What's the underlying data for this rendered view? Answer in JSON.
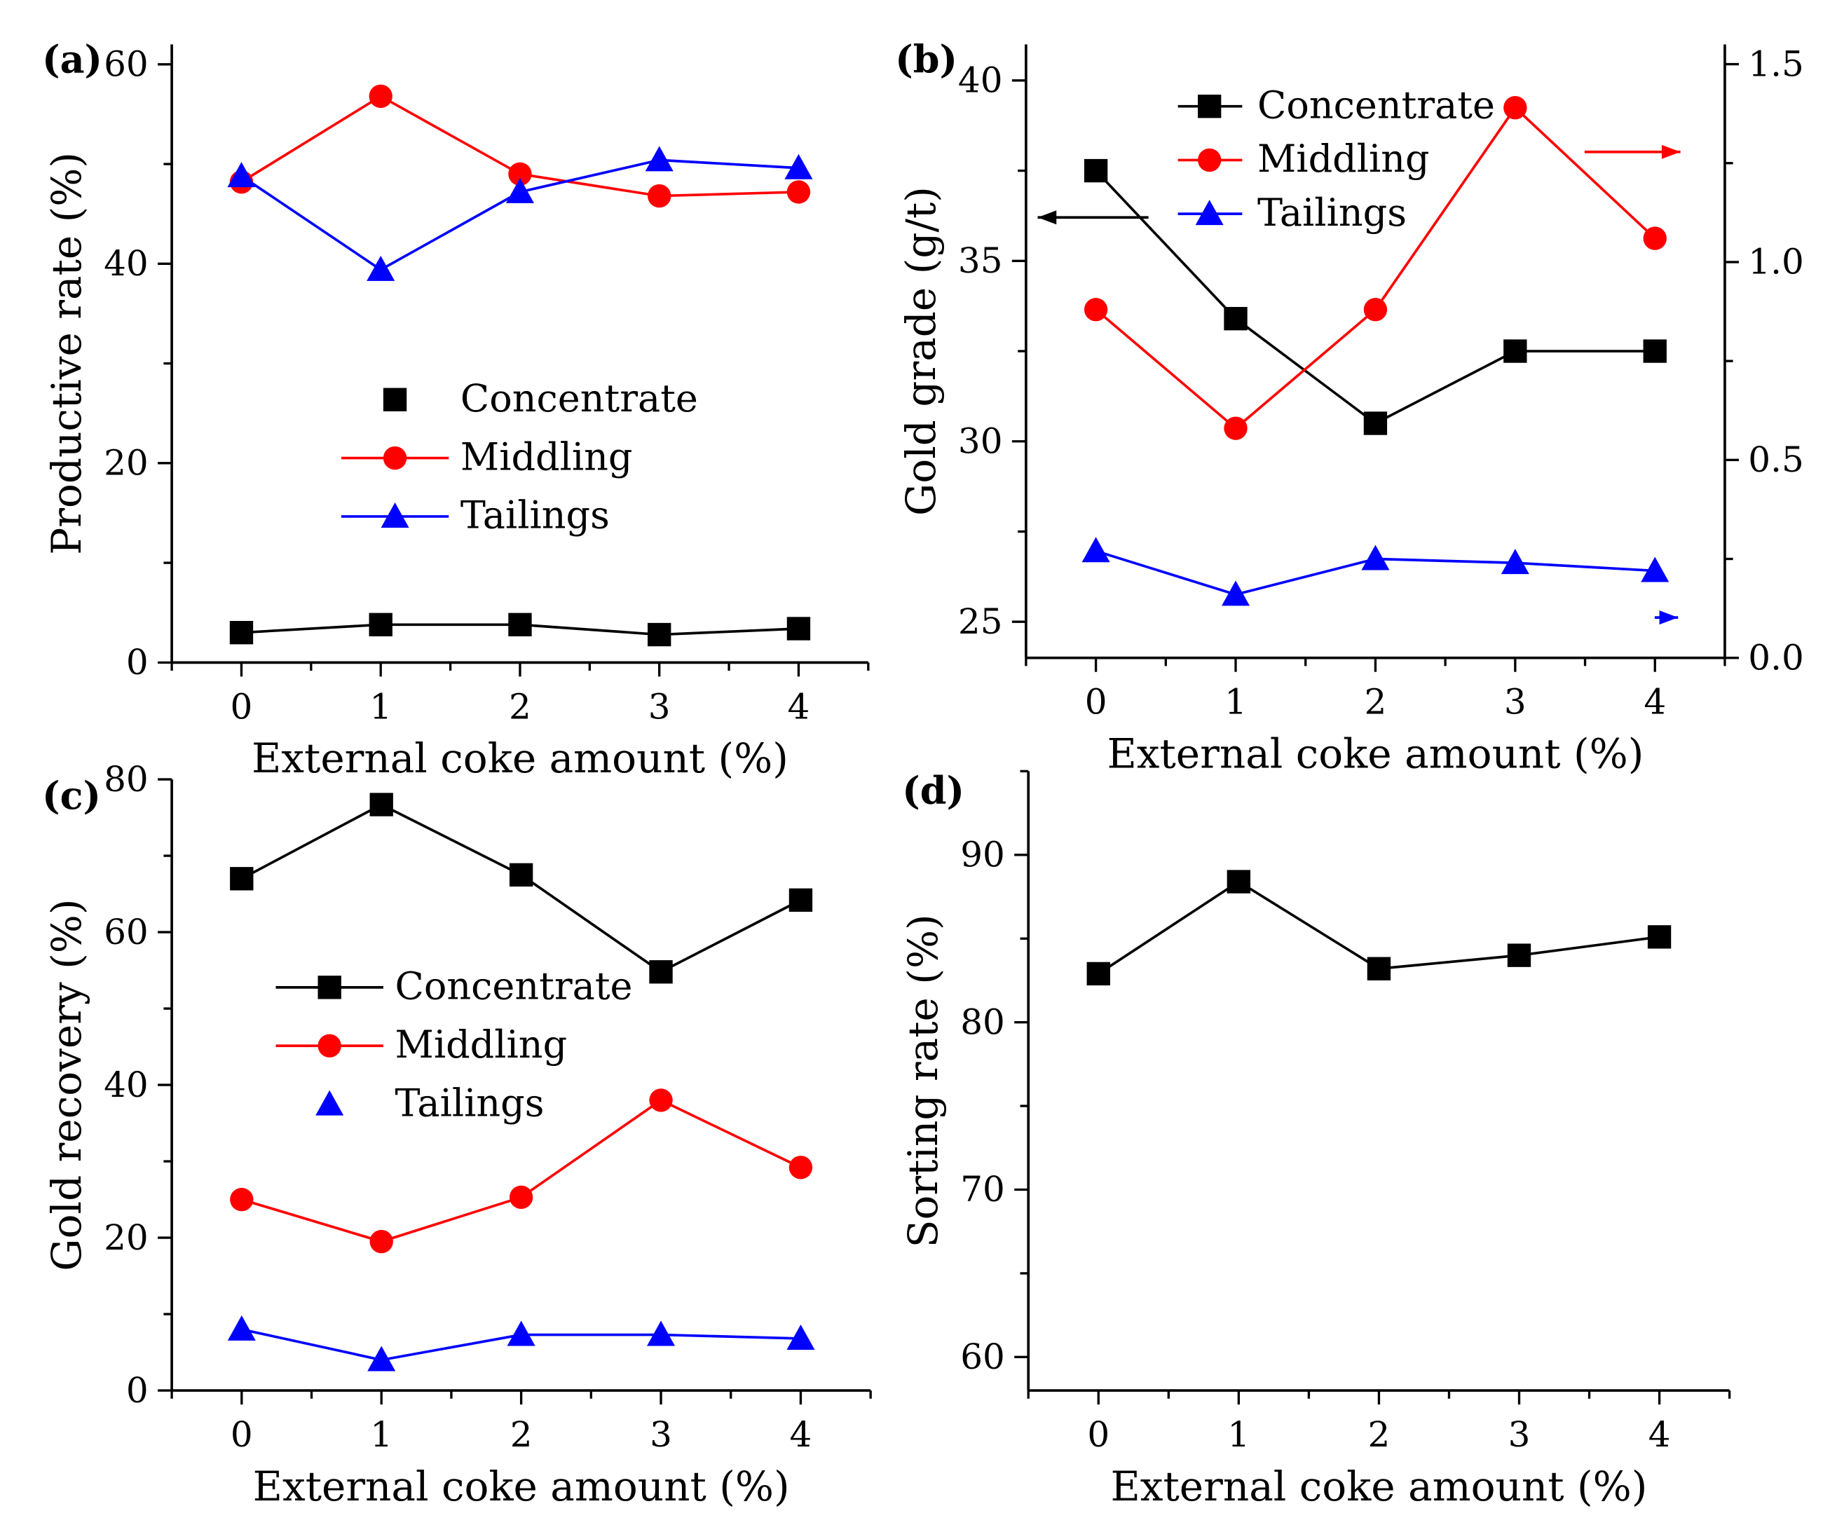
{
  "chart_data": [
    {
      "panel": "(a)",
      "type": "line",
      "x": [
        0,
        1,
        2,
        3,
        4
      ],
      "xlabel": "External coke amount (%)",
      "ylabel": "Productive rate (%)",
      "xlim": [
        -0.5,
        4.5
      ],
      "ylim": [
        0,
        62
      ],
      "xticks": [
        "0",
        "1",
        "2",
        "3",
        "4"
      ],
      "yticks": [
        "0",
        "20",
        "40",
        "60"
      ],
      "grid": false,
      "legend_position": "center",
      "series": [
        {
          "name": "Concentrate",
          "color": "#000000",
          "marker": "square",
          "values": [
            3.0,
            3.8,
            3.8,
            2.8,
            3.4
          ]
        },
        {
          "name": "Middling",
          "color": "#ff0000",
          "marker": "circle",
          "values": [
            48.2,
            56.8,
            49.0,
            46.8,
            47.2
          ]
        },
        {
          "name": "Tailings",
          "color": "#0000ff",
          "marker": "triangle",
          "values": [
            48.8,
            39.4,
            47.2,
            50.4,
            49.6
          ]
        }
      ]
    },
    {
      "panel": "(b)",
      "type": "line",
      "x": [
        0,
        1,
        2,
        3,
        4
      ],
      "xlabel": "External coke amount (%)",
      "ylabel": "Gold grade (g/t)",
      "xlim": [
        -0.5,
        4.5
      ],
      "ylim": [
        24.0,
        41.0
      ],
      "y2lim": [
        0.0,
        1.55
      ],
      "xticks": [
        "0",
        "1",
        "2",
        "3",
        "4"
      ],
      "yticks": [
        "25",
        "30",
        "35",
        "40"
      ],
      "y2ticks": [
        "0.0",
        "0.5",
        "1.0",
        "1.5"
      ],
      "grid": false,
      "legend_position": "top-center",
      "series": [
        {
          "name": "Concentrate",
          "color": "#000000",
          "marker": "square",
          "axis": "left",
          "values": [
            37.5,
            33.4,
            30.5,
            32.5,
            32.5
          ]
        },
        {
          "name": "Middling",
          "color": "#ff0000",
          "marker": "circle",
          "axis": "right",
          "values": [
            0.88,
            0.58,
            0.88,
            1.39,
            1.06
          ]
        },
        {
          "name": "Tailings",
          "color": "#0000ff",
          "marker": "triangle",
          "axis": "right",
          "values": [
            0.27,
            0.16,
            0.25,
            0.24,
            0.22
          ]
        }
      ]
    },
    {
      "panel": "(c)",
      "type": "line",
      "x": [
        0,
        1,
        2,
        3,
        4
      ],
      "xlabel": "External coke amount (%)",
      "ylabel": "Gold recovery (%)",
      "xlim": [
        -0.5,
        4.5
      ],
      "ylim": [
        0,
        80
      ],
      "xticks": [
        "0",
        "1",
        "2",
        "3",
        "4"
      ],
      "yticks": [
        "0",
        "20",
        "40",
        "60",
        "80"
      ],
      "grid": false,
      "legend_position": "center-left",
      "series": [
        {
          "name": "Concentrate",
          "color": "#000000",
          "marker": "square",
          "values": [
            67.0,
            76.7,
            67.5,
            54.8,
            64.2
          ]
        },
        {
          "name": "Middling",
          "color": "#ff0000",
          "marker": "circle",
          "values": [
            25.0,
            19.5,
            25.3,
            38.0,
            29.2
          ]
        },
        {
          "name": "Tailings",
          "color": "#0000ff",
          "marker": "triangle",
          "values": [
            8.0,
            4.0,
            7.3,
            7.3,
            6.8
          ]
        }
      ]
    },
    {
      "panel": "(d)",
      "type": "line",
      "x": [
        0,
        1,
        2,
        3,
        4
      ],
      "xlabel": "External coke amount (%)",
      "ylabel": "Sorting rate (%)",
      "xlim": [
        -0.5,
        4.5
      ],
      "ylim": [
        58,
        95
      ],
      "xticks": [
        "0",
        "1",
        "2",
        "3",
        "4"
      ],
      "yticks": [
        "60",
        "70",
        "80",
        "90"
      ],
      "grid": false,
      "series": [
        {
          "color": "#000000",
          "marker": "square",
          "values": [
            82.9,
            88.4,
            83.2,
            84.0,
            85.1
          ]
        }
      ]
    }
  ]
}
